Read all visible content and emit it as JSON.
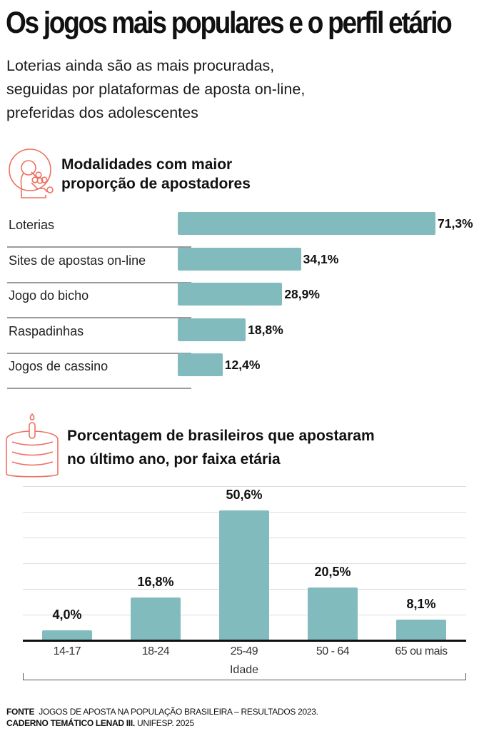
{
  "header": {
    "title": "Os jogos mais populares e o perfil etário",
    "subtitle_lines": [
      "Loterias ainda são as mais procuradas,",
      "seguidas por plataformas de aposta on-line,",
      "preferidas dos adolescentes"
    ]
  },
  "colors": {
    "bar": "#82bbbd",
    "icon": "#ee7060",
    "text": "#111111"
  },
  "icons": {
    "section1": "gumball-machine-icon",
    "section2": "birthday-cake-icon"
  },
  "chart_data": [
    {
      "type": "bar",
      "orientation": "horizontal",
      "title": "Modalidades com maior proporção de apostadores",
      "title_lines": [
        "Modalidades com maior",
        "proporção de apostadores"
      ],
      "categories": [
        "Loterias",
        "Sites de apostas on-line",
        "Jogo do bicho",
        "Raspadinhas",
        "Jogos de cassino"
      ],
      "values": [
        71.3,
        34.1,
        28.9,
        18.8,
        12.4
      ],
      "value_labels": [
        "71,3%",
        "34,1%",
        "28,9%",
        "18,8%",
        "12,4%"
      ],
      "unit": "%",
      "xlabel": "",
      "ylabel": "",
      "xlim": [
        0,
        71.3
      ],
      "grid": false,
      "legend": "none"
    },
    {
      "type": "bar",
      "orientation": "vertical",
      "title": "Porcentagem de brasileiros que apostaram no último ano, por faixa etária",
      "title_lines": [
        "Porcentagem de brasileiros que apostaram",
        "no último ano, por faixa etária"
      ],
      "categories": [
        "14-17",
        "18-24",
        "25-49",
        "50 - 64",
        "65 ou mais"
      ],
      "values": [
        4.0,
        16.8,
        50.6,
        20.5,
        8.1
      ],
      "value_labels": [
        "4,0%",
        "16,8%",
        "50,6%",
        "20,5%",
        "8,1%"
      ],
      "unit": "%",
      "xlabel": "Idade",
      "ylabel": "",
      "ylim": [
        0,
        60
      ],
      "grid": true,
      "legend": "none"
    }
  ],
  "footer": {
    "source_label": "FONTE",
    "source_text": "JOGOS DE APOSTA NA POPULAÇÃO BRASILEIRA – RESULTADOS 2023.",
    "source_bold2": "CADERNO TEMÁTICO LENAD III.",
    "source_text2": "UNIFESP. 2025"
  }
}
